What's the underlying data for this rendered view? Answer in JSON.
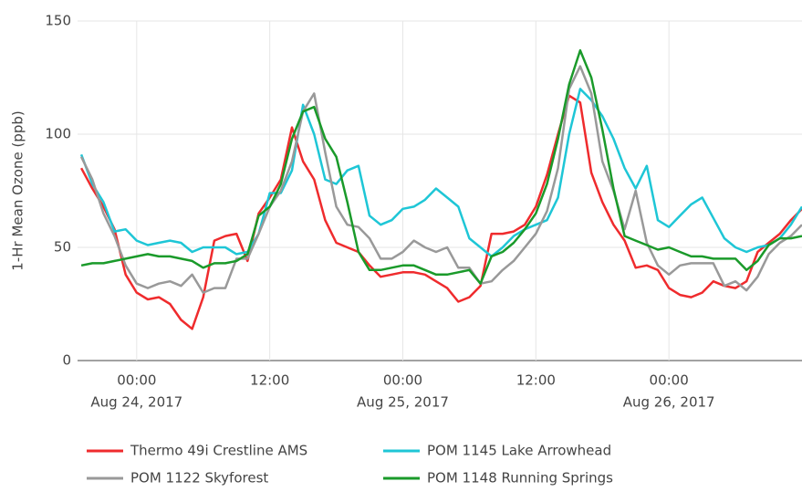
{
  "chart_data": {
    "type": "line",
    "y_label": "1-Hr Mean Ozone (ppb)",
    "x": [
      "2017-08-23T19:00",
      "2017-08-23T20:00",
      "2017-08-23T21:00",
      "2017-08-23T22:00",
      "2017-08-23T23:00",
      "2017-08-24T00:00",
      "2017-08-24T01:00",
      "2017-08-24T02:00",
      "2017-08-24T03:00",
      "2017-08-24T04:00",
      "2017-08-24T05:00",
      "2017-08-24T06:00",
      "2017-08-24T07:00",
      "2017-08-24T08:00",
      "2017-08-24T09:00",
      "2017-08-24T10:00",
      "2017-08-24T11:00",
      "2017-08-24T12:00",
      "2017-08-24T13:00",
      "2017-08-24T14:00",
      "2017-08-24T15:00",
      "2017-08-24T16:00",
      "2017-08-24T17:00",
      "2017-08-24T18:00",
      "2017-08-24T19:00",
      "2017-08-24T20:00",
      "2017-08-24T21:00",
      "2017-08-24T22:00",
      "2017-08-24T23:00",
      "2017-08-25T00:00",
      "2017-08-25T01:00",
      "2017-08-25T02:00",
      "2017-08-25T03:00",
      "2017-08-25T04:00",
      "2017-08-25T05:00",
      "2017-08-25T06:00",
      "2017-08-25T07:00",
      "2017-08-25T08:00",
      "2017-08-25T09:00",
      "2017-08-25T10:00",
      "2017-08-25T11:00",
      "2017-08-25T12:00",
      "2017-08-25T13:00",
      "2017-08-25T14:00",
      "2017-08-25T15:00",
      "2017-08-25T16:00",
      "2017-08-25T17:00",
      "2017-08-25T18:00",
      "2017-08-25T19:00",
      "2017-08-25T20:00",
      "2017-08-25T21:00",
      "2017-08-25T22:00",
      "2017-08-25T23:00",
      "2017-08-26T00:00",
      "2017-08-26T01:00",
      "2017-08-26T02:00",
      "2017-08-26T03:00",
      "2017-08-26T04:00",
      "2017-08-26T05:00",
      "2017-08-26T06:00",
      "2017-08-26T07:00",
      "2017-08-26T08:00",
      "2017-08-26T09:00",
      "2017-08-26T10:00",
      "2017-08-26T11:00",
      "2017-08-26T12:00"
    ],
    "series": [
      {
        "name": "Thermo 49i Crestline AMS",
        "color": "#ef2b2d",
        "values": [
          85,
          76,
          68,
          58,
          38,
          30,
          27,
          28,
          25,
          18,
          14,
          28,
          53,
          55,
          56,
          44,
          65,
          72,
          80,
          103,
          88,
          80,
          62,
          52,
          50,
          48,
          42,
          37,
          38,
          39,
          39,
          38,
          35,
          32,
          26,
          28,
          33,
          56,
          56,
          57,
          60,
          68,
          82,
          100,
          117,
          114,
          83,
          70,
          60,
          53,
          41,
          42,
          40,
          32,
          29,
          28,
          30,
          35,
          33,
          32,
          35,
          48,
          52,
          56,
          62,
          67
        ]
      },
      {
        "name": "POM 1145 Lake Arrowhead",
        "color": "#1ec6d6",
        "values": [
          91,
          78,
          70,
          57,
          58,
          53,
          51,
          52,
          53,
          52,
          48,
          50,
          50,
          50,
          47,
          48,
          56,
          74,
          74,
          84,
          113,
          100,
          80,
          78,
          84,
          86,
          64,
          60,
          62,
          67,
          68,
          71,
          76,
          72,
          68,
          54,
          50,
          46,
          50,
          55,
          58,
          60,
          62,
          72,
          100,
          120,
          115,
          108,
          98,
          85,
          76,
          86,
          62,
          59,
          64,
          69,
          72,
          63,
          54,
          50,
          48,
          50,
          51,
          54,
          60,
          68
        ]
      },
      {
        "name": "POM 1122 Skyforest",
        "color": "#999999",
        "values": [
          90,
          80,
          65,
          55,
          42,
          34,
          32,
          34,
          35,
          33,
          38,
          30,
          32,
          32,
          45,
          45,
          56,
          68,
          75,
          88,
          110,
          118,
          92,
          68,
          60,
          59,
          54,
          45,
          45,
          48,
          53,
          50,
          48,
          50,
          41,
          41,
          34,
          35,
          40,
          44,
          50,
          56,
          66,
          85,
          120,
          130,
          118,
          88,
          75,
          58,
          75,
          52,
          42,
          38,
          42,
          43,
          43,
          43,
          33,
          35,
          31,
          37,
          47,
          52,
          55,
          60
        ]
      },
      {
        "name": "POM 1148 Running Springs",
        "color": "#1a9a2a",
        "values": [
          42,
          43,
          43,
          44,
          45,
          46,
          47,
          46,
          46,
          45,
          44,
          41,
          43,
          43,
          44,
          47,
          64,
          68,
          78,
          98,
          110,
          112,
          98,
          90,
          70,
          48,
          40,
          40,
          41,
          42,
          42,
          40,
          38,
          38,
          39,
          40,
          34,
          46,
          48,
          52,
          58,
          65,
          78,
          98,
          122,
          137,
          125,
          102,
          76,
          55,
          53,
          51,
          49,
          50,
          48,
          46,
          46,
          45,
          45,
          45,
          40,
          44,
          51,
          54,
          54,
          55
        ]
      }
    ],
    "xlim": [
      "2017-08-23T18:40",
      "2017-08-26T12:00"
    ],
    "xticks": [
      {
        "value": "2017-08-24T00:00",
        "label": "00:00",
        "date": "Aug 24, 2017"
      },
      {
        "value": "2017-08-24T12:00",
        "label": "12:00"
      },
      {
        "value": "2017-08-25T00:00",
        "label": "00:00",
        "date": "Aug 25, 2017"
      },
      {
        "value": "2017-08-25T12:00",
        "label": "12:00"
      },
      {
        "value": "2017-08-26T00:00",
        "label": "00:00",
        "date": "Aug 26, 2017"
      }
    ],
    "ylim": [
      0,
      150
    ],
    "yticks": [
      0,
      50,
      100,
      150
    ],
    "grid": true,
    "legend": "bottom"
  }
}
